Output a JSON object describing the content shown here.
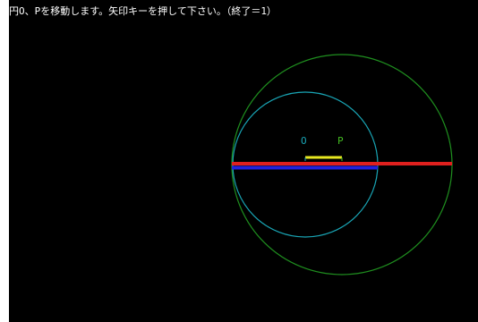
{
  "instruction": "円O、Pを移動します。矢印キーを押して下さい。（終了＝1）",
  "points": {
    "o_label": "O",
    "p_label": "P"
  },
  "colors": {
    "background": "#000000",
    "text": "#ffffff",
    "outer_circle": "#1f8f1f",
    "inner_circle": "#19a5b5",
    "red_line": "#e0201e",
    "blue_line": "#2222dd",
    "yellow_line": "#e8e820",
    "label_o": "#19a5b5",
    "label_p": "#44bb22"
  },
  "icons": {
    "outer_circle": "circle-outline",
    "inner_circle": "circle-outline"
  }
}
